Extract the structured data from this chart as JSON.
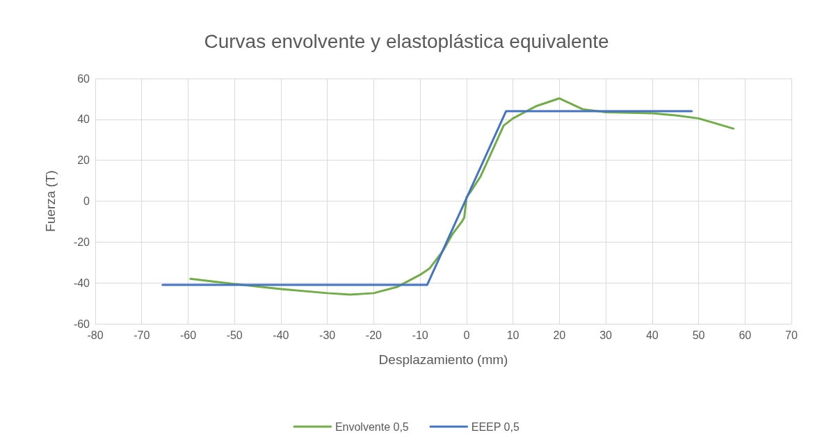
{
  "chart_data": {
    "type": "line",
    "title": "Curvas envolvente y elastoplástica equivalente",
    "xlabel": "Desplazamiento (mm)",
    "ylabel": "Fuerza (T)",
    "xlim": [
      -80,
      70
    ],
    "xticks": [
      -80,
      -70,
      -60,
      -50,
      -40,
      -30,
      -20,
      -10,
      0,
      10,
      20,
      30,
      40,
      50,
      60,
      70
    ],
    "ylim": [
      -60,
      60
    ],
    "yticks": [
      -60,
      -40,
      -20,
      0,
      20,
      40,
      60
    ],
    "grid": true,
    "legend": "bottom",
    "marker": "none",
    "series": [
      {
        "name": "Envolvente 0,5",
        "color": "#70ad47",
        "x": [
          -59.5,
          -50,
          -40,
          -30,
          -25,
          -20,
          -15,
          -10,
          -8,
          -5,
          -3,
          -1,
          -0.5,
          0,
          1,
          3,
          5,
          7,
          8,
          10,
          15,
          20,
          25,
          30,
          40,
          45,
          50,
          57.5
        ],
        "values": [
          -38,
          -40.5,
          -43,
          -45,
          -45.7,
          -45,
          -42,
          -36,
          -33,
          -24,
          -16,
          -10,
          -8,
          2,
          5,
          12,
          22,
          32,
          37,
          40.5,
          46.5,
          50.3,
          45,
          43.5,
          43,
          42,
          40.5,
          35.5
        ]
      },
      {
        "name": "EEEP 0,5",
        "color": "#4472c4",
        "x": [
          -65.5,
          -8.5,
          8.5,
          48.5
        ],
        "values": [
          -41,
          -41,
          44,
          44
        ]
      }
    ]
  }
}
